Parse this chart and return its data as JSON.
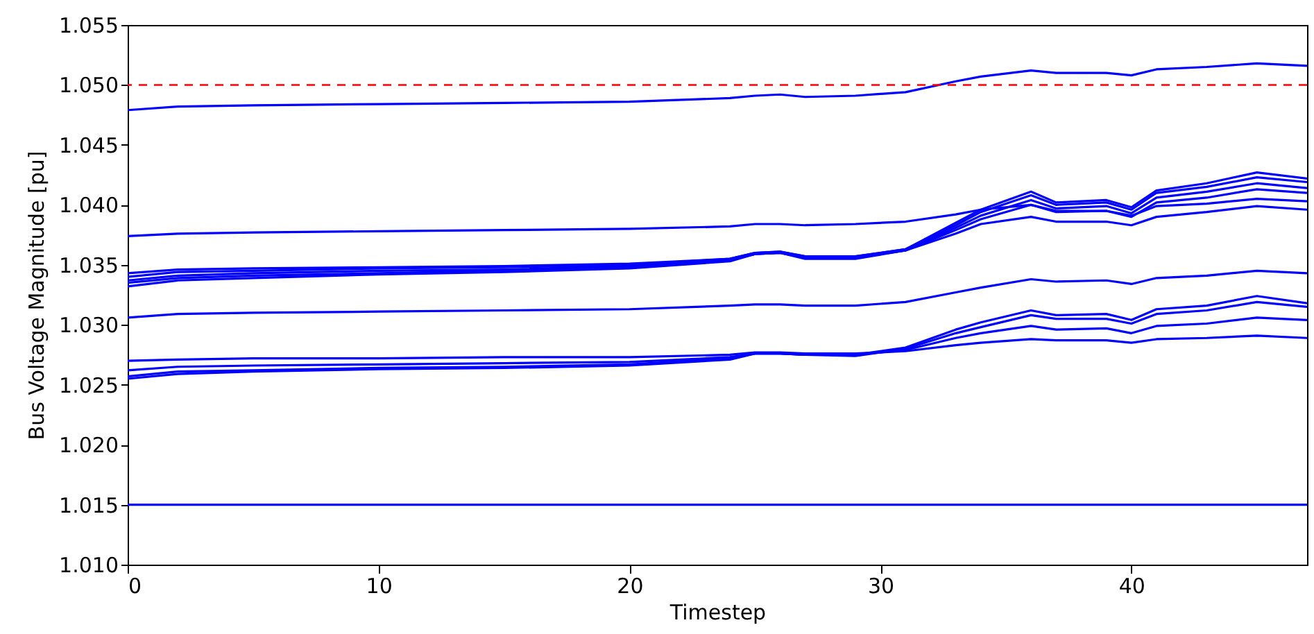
{
  "chart_data": {
    "type": "line",
    "xlabel": "Timestep",
    "ylabel": "Bus Voltage Magnitude [pu]",
    "x": [
      0,
      2,
      5,
      10,
      15,
      20,
      24,
      25,
      26,
      27,
      29,
      31,
      33,
      34,
      36,
      37,
      39,
      40,
      41,
      43,
      45,
      47
    ],
    "xlim": [
      0,
      47
    ],
    "xticks": [
      0,
      10,
      20,
      30,
      40
    ],
    "ylim": [
      1.01,
      1.055
    ],
    "yticks": [
      {
        "value": 1.01,
        "label": "1.010"
      },
      {
        "value": 1.015,
        "label": "1.015"
      },
      {
        "value": 1.02,
        "label": "1.020"
      },
      {
        "value": 1.025,
        "label": "1.025"
      },
      {
        "value": 1.03,
        "label": "1.030"
      },
      {
        "value": 1.035,
        "label": "1.035"
      },
      {
        "value": 1.04,
        "label": "1.040"
      },
      {
        "value": 1.045,
        "label": "1.045"
      },
      {
        "value": 1.05,
        "label": "1.050"
      },
      {
        "value": 1.055,
        "label": "1.055"
      }
    ],
    "grid": false,
    "line_style": "solid",
    "ref_lines": [
      {
        "axis": "y",
        "value": 1.05,
        "color": "#ff0000",
        "line_style": "dashed"
      }
    ],
    "series": [
      {
        "color": "#0000ff",
        "values": [
          1.0479,
          1.0482,
          1.0483,
          1.0484,
          1.0485,
          1.0486,
          1.0489,
          1.0491,
          1.0492,
          1.049,
          1.0491,
          1.0494,
          1.0503,
          1.0507,
          1.0512,
          1.051,
          1.051,
          1.0508,
          1.0513,
          1.0515,
          1.0518,
          1.0516
        ]
      },
      {
        "color": "#0000ff",
        "values": [
          1.0374,
          1.0376,
          1.0377,
          1.0378,
          1.0379,
          1.038,
          1.0382,
          1.0384,
          1.0384,
          1.0383,
          1.0384,
          1.0386,
          1.0392,
          1.0396,
          1.04,
          1.0395,
          1.0395,
          1.0391,
          1.0399,
          1.0401,
          1.0405,
          1.0403
        ]
      },
      {
        "color": "#0000ff",
        "values": [
          1.0343,
          1.0346,
          1.0347,
          1.0348,
          1.0349,
          1.0351,
          1.0355,
          1.036,
          1.0361,
          1.0357,
          1.0357,
          1.0363,
          1.0385,
          1.0396,
          1.0411,
          1.0402,
          1.0404,
          1.0398,
          1.0412,
          1.0418,
          1.0427,
          1.0422
        ]
      },
      {
        "color": "#0000ff",
        "values": [
          1.034,
          1.0344,
          1.0345,
          1.0347,
          1.0348,
          1.035,
          1.0355,
          1.036,
          1.0361,
          1.0357,
          1.0357,
          1.0363,
          1.0383,
          1.0394,
          1.0408,
          1.04,
          1.0402,
          1.0396,
          1.041,
          1.0415,
          1.0423,
          1.0419
        ]
      },
      {
        "color": "#0000ff",
        "values": [
          1.0337,
          1.0341,
          1.0343,
          1.0345,
          1.0346,
          1.0349,
          1.0354,
          1.0359,
          1.036,
          1.0356,
          1.0356,
          1.0362,
          1.0381,
          1.0391,
          1.0404,
          1.0397,
          1.0399,
          1.0393,
          1.0406,
          1.0411,
          1.0418,
          1.0414
        ]
      },
      {
        "color": "#0000ff",
        "values": [
          1.0335,
          1.0339,
          1.0341,
          1.0343,
          1.0345,
          1.0348,
          1.0354,
          1.0359,
          1.036,
          1.0356,
          1.0356,
          1.0362,
          1.0379,
          1.0388,
          1.04,
          1.0394,
          1.0395,
          1.039,
          1.0402,
          1.0406,
          1.0413,
          1.041
        ]
      },
      {
        "color": "#0000ff",
        "values": [
          1.0332,
          1.0337,
          1.0339,
          1.0342,
          1.0344,
          1.0347,
          1.0353,
          1.0359,
          1.036,
          1.0355,
          1.0355,
          1.0362,
          1.0376,
          1.0384,
          1.039,
          1.0386,
          1.0386,
          1.0383,
          1.039,
          1.0394,
          1.0399,
          1.0396
        ]
      },
      {
        "color": "#0000ff",
        "values": [
          1.0306,
          1.0309,
          1.031,
          1.0311,
          1.0312,
          1.0313,
          1.0316,
          1.0317,
          1.0317,
          1.0316,
          1.0316,
          1.0319,
          1.0327,
          1.0331,
          1.0338,
          1.0336,
          1.0337,
          1.0334,
          1.0339,
          1.0341,
          1.0345,
          1.0343
        ]
      },
      {
        "color": "#0000ff",
        "values": [
          1.0257,
          1.0261,
          1.0262,
          1.0264,
          1.0265,
          1.0267,
          1.0272,
          1.0276,
          1.0276,
          1.0275,
          1.0275,
          1.0281,
          1.0296,
          1.0302,
          1.0312,
          1.0308,
          1.0309,
          1.0304,
          1.0313,
          1.0316,
          1.0324,
          1.0318
        ]
      },
      {
        "color": "#0000ff",
        "values": [
          1.0255,
          1.0259,
          1.0261,
          1.0263,
          1.0264,
          1.0266,
          1.0271,
          1.0276,
          1.0276,
          1.0275,
          1.0274,
          1.028,
          1.0293,
          1.0298,
          1.0308,
          1.0305,
          1.0305,
          1.0301,
          1.0309,
          1.0312,
          1.0319,
          1.0315
        ]
      },
      {
        "color": "#0000ff",
        "values": [
          1.0262,
          1.0265,
          1.0266,
          1.0267,
          1.0268,
          1.0269,
          1.0273,
          1.0276,
          1.0276,
          1.0275,
          1.0275,
          1.0279,
          1.0289,
          1.0293,
          1.0299,
          1.0296,
          1.0297,
          1.0293,
          1.0299,
          1.0301,
          1.0306,
          1.0304
        ]
      },
      {
        "color": "#0000ff",
        "values": [
          1.027,
          1.0271,
          1.0272,
          1.0272,
          1.0273,
          1.0273,
          1.0275,
          1.0277,
          1.0277,
          1.0276,
          1.0276,
          1.0278,
          1.0283,
          1.0285,
          1.0288,
          1.0287,
          1.0287,
          1.0285,
          1.0288,
          1.0289,
          1.0291,
          1.0289
        ]
      },
      {
        "color": "#0000ff",
        "values": [
          1.015,
          1.015,
          1.015,
          1.015,
          1.015,
          1.015,
          1.015,
          1.015,
          1.015,
          1.015,
          1.015,
          1.015,
          1.015,
          1.015,
          1.015,
          1.015,
          1.015,
          1.015,
          1.015,
          1.015,
          1.015,
          1.015
        ]
      }
    ]
  }
}
